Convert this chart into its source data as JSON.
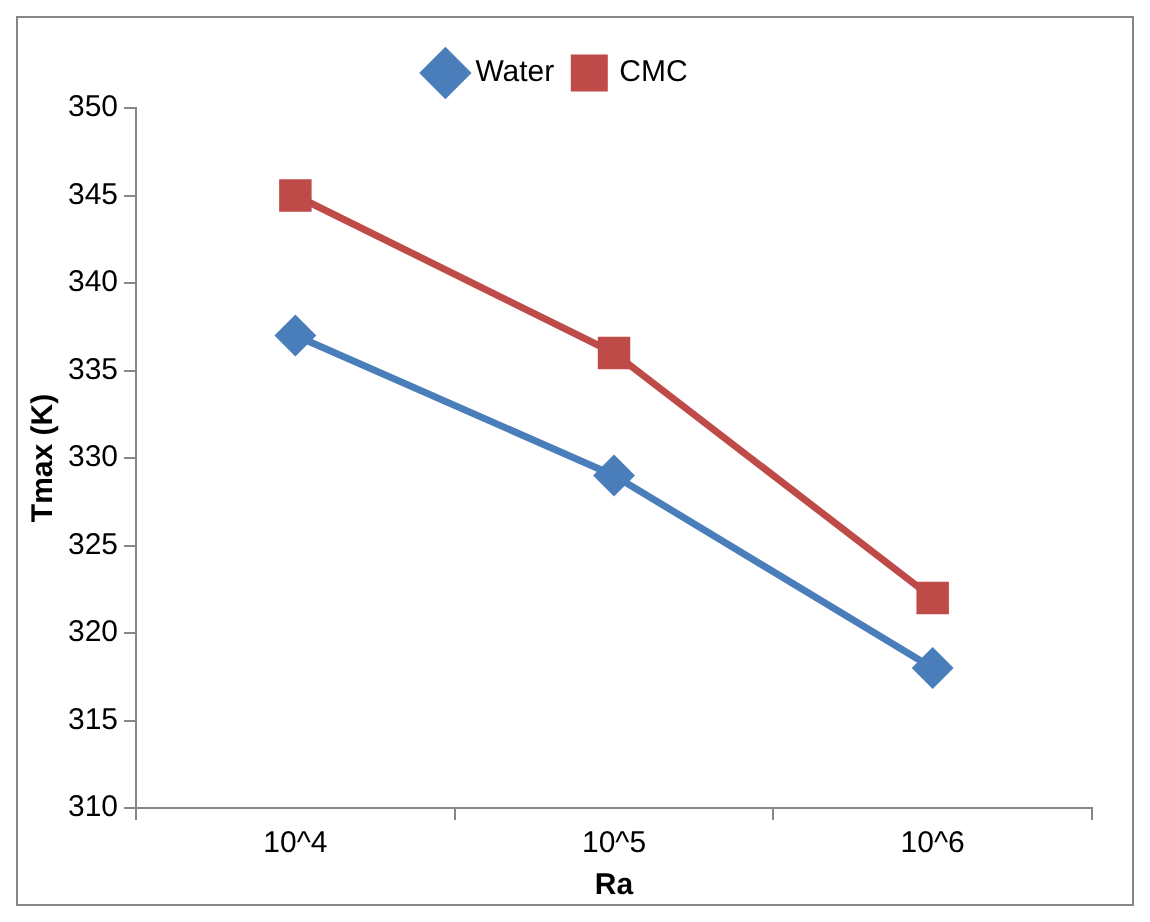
{
  "chart_data": {
    "type": "line",
    "xlabel": "Ra",
    "ylabel": "Tmax (K)",
    "categories": [
      "10^4",
      "10^5",
      "10^6"
    ],
    "series": [
      {
        "name": "Water",
        "color": "#4a7ebb",
        "values": [
          337,
          329,
          318
        ],
        "marker": "diamond"
      },
      {
        "name": "CMC",
        "color": "#be4b48",
        "values": [
          345,
          336,
          322
        ],
        "marker": "square"
      }
    ],
    "ylim": [
      310,
      350
    ],
    "yticks": [
      310,
      315,
      320,
      325,
      330,
      335,
      340,
      345,
      350
    ],
    "grid": false,
    "legend": "top",
    "line_style": "solid"
  }
}
